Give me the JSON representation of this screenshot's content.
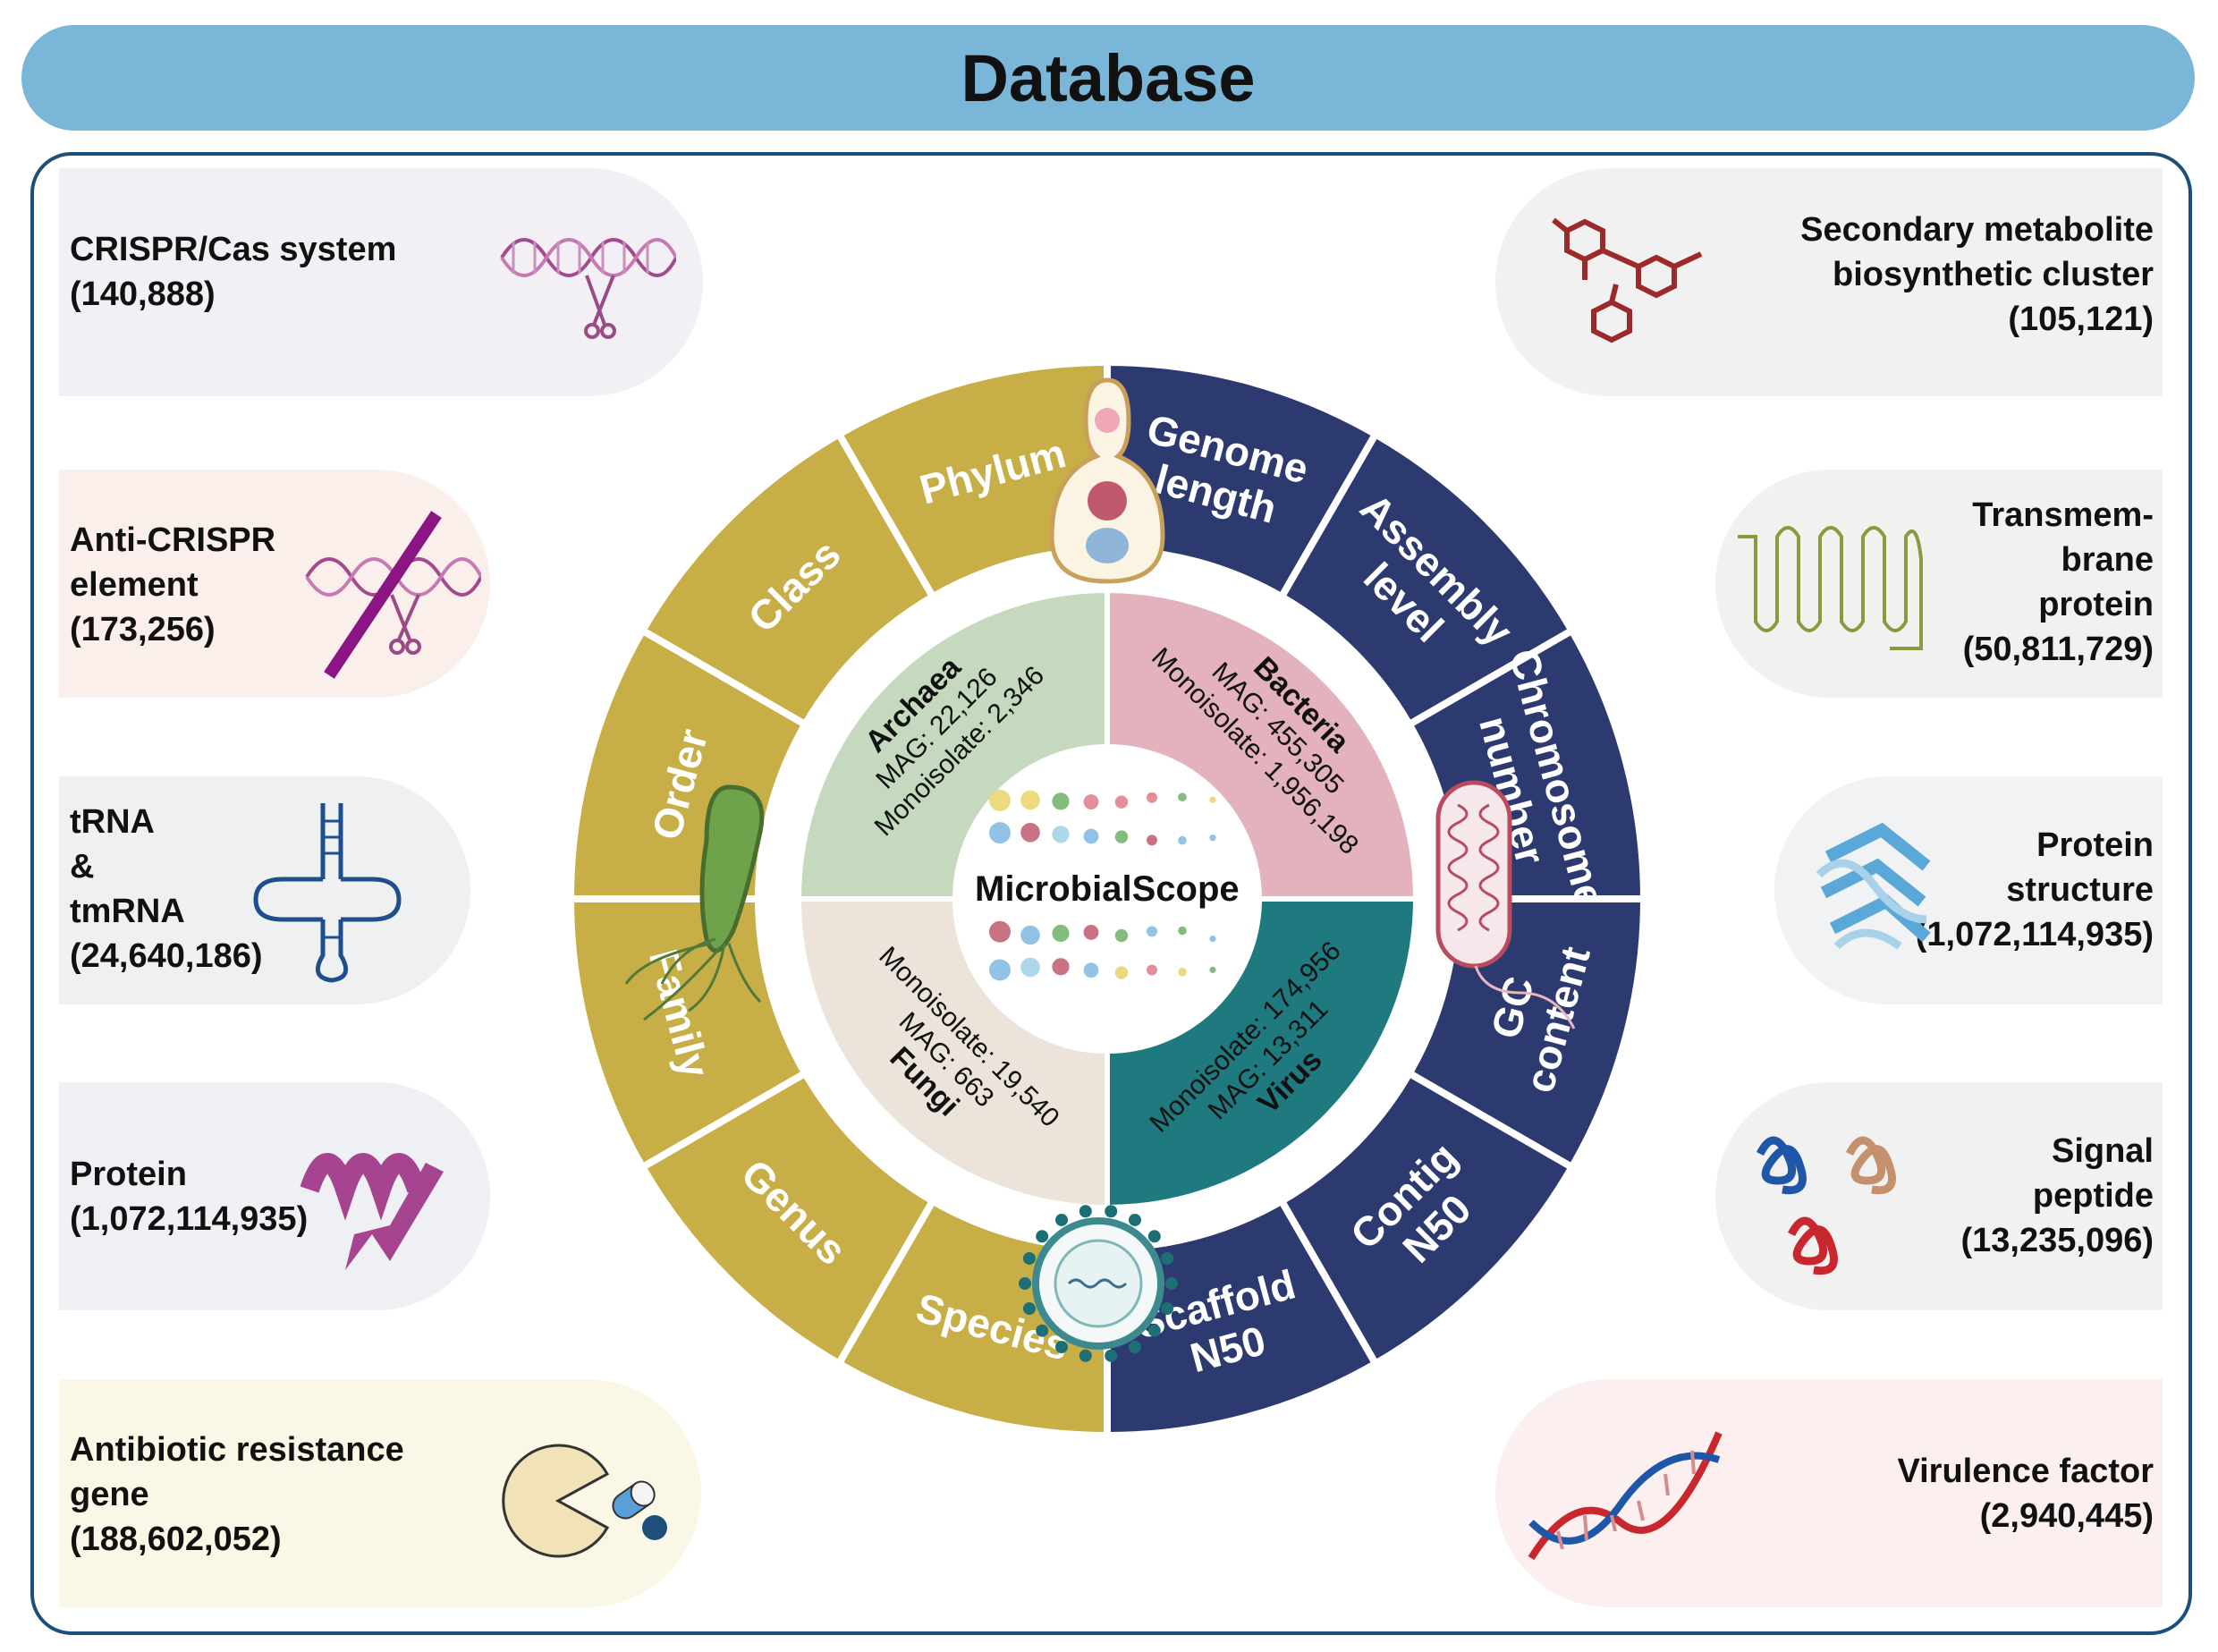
{
  "title": "Database",
  "center": {
    "label": "MicrobialScope"
  },
  "outer_ring": {
    "left_color": "#c7ae47",
    "right_color": "#2d3a6f",
    "left_segments": [
      "Phylum",
      "Class",
      "Order",
      "Family",
      "Genus",
      "Species"
    ],
    "right_segments": [
      [
        "Genome",
        "length"
      ],
      [
        "Assembly",
        "level"
      ],
      [
        "Chromosome",
        "number"
      ],
      [
        "GC",
        "content"
      ],
      [
        "Contig",
        "N50"
      ],
      [
        "Scaffold",
        "N50"
      ]
    ]
  },
  "quadrants": [
    {
      "name": "Archaea",
      "mag": "MAG: 22,126",
      "mono": "Monoisolate: 2,346",
      "color": "#c4d9bd"
    },
    {
      "name": "Bacteria",
      "mag": "MAG: 455,305",
      "mono": "Monoisolate: 1,956,198",
      "color": "#e3b2bc"
    },
    {
      "name": "Virus",
      "mag": "MAG: 13,311",
      "mono": "Monoisolate: 174,956",
      "color": "#1f7a80"
    },
    {
      "name": "Fungi",
      "mag": "MAG: 663",
      "mono": "Monoisolate: 19,540",
      "color": "#ece3da"
    }
  ],
  "left_cards": [
    {
      "lines": [
        "CRISPR/Cas system",
        "(140,888)"
      ],
      "bg": "#f2f0f4",
      "icon": "dna-scissors-icon"
    },
    {
      "lines": [
        "Anti-CRISPR",
        "element",
        "(173,256)"
      ],
      "bg": "#fbefec",
      "icon": "crossed-dna-icon"
    },
    {
      "lines": [
        "tRNA",
        "&",
        "tmRNA",
        "(24,640,186)"
      ],
      "bg": "#eef0f2",
      "icon": "trna-icon"
    },
    {
      "lines": [
        "Protein",
        "(1,072,114,935)"
      ],
      "bg": "#eef0f3",
      "icon": "protein-ribbon-icon"
    },
    {
      "lines": [
        "Antibiotic resistance",
        "gene",
        "(188,602,052)"
      ],
      "bg": "#fbf7e6",
      "icon": "pacman-pill-icon"
    }
  ],
  "right_cards": [
    {
      "lines": [
        "Secondary metabolite",
        "biosynthetic cluster",
        "(105,121)"
      ],
      "bg": "#f2f1f1",
      "icon": "molecule-icon"
    },
    {
      "lines": [
        "Transmem-",
        "brane",
        "protein",
        "(50,811,729)"
      ],
      "bg": "#eff2ee",
      "icon": "transmembrane-icon"
    },
    {
      "lines": [
        "Protein",
        "structure",
        "(1,072,114,935)"
      ],
      "bg": "#f1f2f4",
      "icon": "protein-structure-icon"
    },
    {
      "lines": [
        "Signal",
        "peptide",
        "(13,235,096)"
      ],
      "bg": "#f1f1f2",
      "icon": "peptide-coil-icon"
    },
    {
      "lines": [
        "Virulence factor",
        "(2,940,445)"
      ],
      "bg": "#fbf0ef",
      "icon": "dna-helix-icon"
    }
  ]
}
